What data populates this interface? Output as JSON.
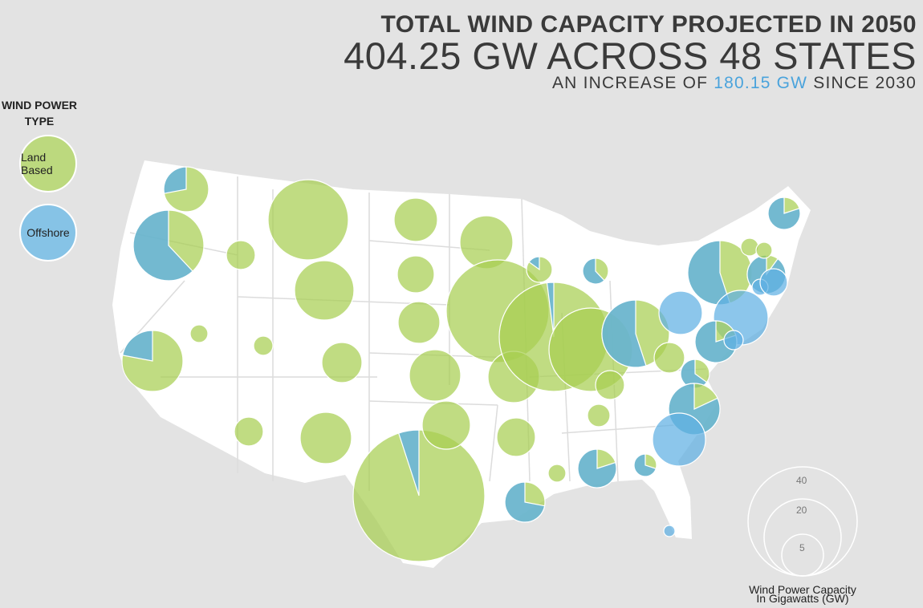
{
  "header": {
    "title": "TOTAL WIND CAPACITY PROJECTED IN 2050",
    "main": "404.25 GW ACROSS 48 STATES",
    "sub_prefix": "AN INCREASE OF",
    "sub_highlight": "180.15 GW",
    "sub_suffix": "SINCE 2030"
  },
  "legend": {
    "title_line1": "WIND POWER",
    "title_line2": "TYPE",
    "land_label": "Land Based",
    "offshore_label": "Offshore"
  },
  "size_legend": {
    "labels": [
      "40",
      "20",
      "5"
    ],
    "caption_line1": "Wind Power Capacity",
    "caption_line2": "In Gigawatts (GW)"
  },
  "colors": {
    "land": "#a8cf52",
    "offshore": "#5fb0e3",
    "highlight": "#4aa3dc",
    "background": "#e3e3e3",
    "map_fill": "#ffffff"
  }
}
